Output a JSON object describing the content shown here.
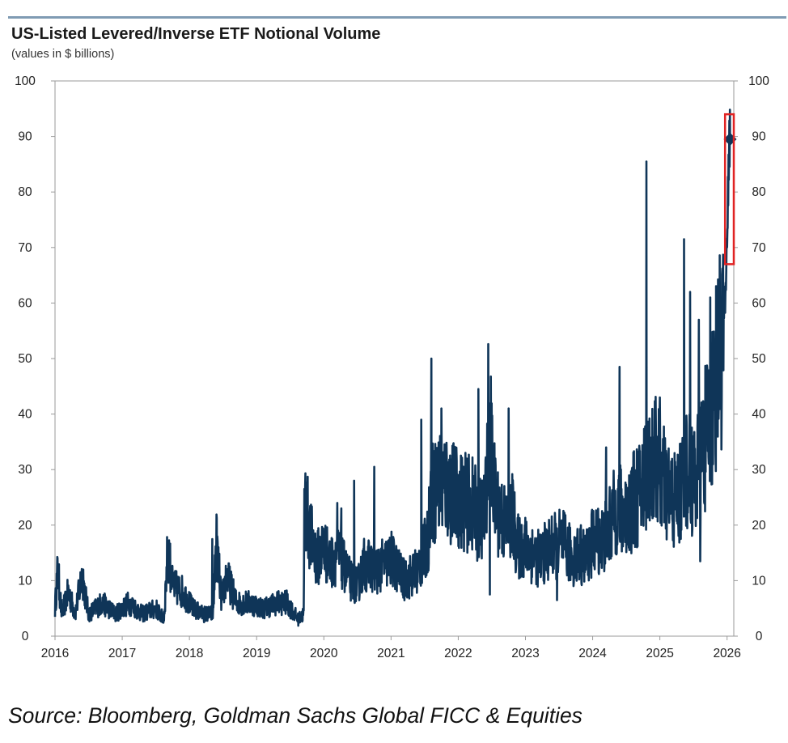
{
  "chart_data": {
    "type": "line",
    "title": "US-Listed Levered/Inverse ETF Notional Volume",
    "subtitle": "(values in $ billions)",
    "source": "Source: Bloomberg, Goldman Sachs Global FICC & Equities",
    "x_ticks": [
      "2016",
      "2017",
      "2018",
      "2019",
      "2020",
      "2021",
      "2022",
      "2023",
      "2024",
      "2025",
      "2026"
    ],
    "y_ticks": [
      "0",
      "10",
      "20",
      "30",
      "40",
      "50",
      "60",
      "70",
      "80",
      "90",
      "100"
    ],
    "xlim": [
      2016,
      2026.1
    ],
    "ylim": [
      0,
      100
    ],
    "grid": false,
    "dual_y_axis": true,
    "series": [
      {
        "color": "#0f3558",
        "anchors": [
          [
            2016.0,
            5
          ],
          [
            2016.04,
            12
          ],
          [
            2016.1,
            4
          ],
          [
            2016.2,
            8
          ],
          [
            2016.3,
            4
          ],
          [
            2016.4,
            11
          ],
          [
            2016.5,
            4
          ],
          [
            2016.7,
            6
          ],
          [
            2016.9,
            4
          ],
          [
            2017.1,
            6
          ],
          [
            2017.3,
            4
          ],
          [
            2017.5,
            5
          ],
          [
            2017.62,
            3
          ],
          [
            2017.68,
            16
          ],
          [
            2017.75,
            9
          ],
          [
            2017.9,
            8
          ],
          [
            2018.05,
            5
          ],
          [
            2018.2,
            4
          ],
          [
            2018.35,
            4
          ],
          [
            2018.4,
            17
          ],
          [
            2018.48,
            6
          ],
          [
            2018.55,
            11
          ],
          [
            2018.7,
            6
          ],
          [
            2018.9,
            6
          ],
          [
            2019.1,
            5
          ],
          [
            2019.3,
            6
          ],
          [
            2019.45,
            6
          ],
          [
            2019.62,
            3
          ],
          [
            2019.7,
            4
          ],
          [
            2019.72,
            24
          ],
          [
            2019.8,
            18
          ],
          [
            2019.9,
            14
          ],
          [
            2020.0,
            16
          ],
          [
            2020.1,
            13
          ],
          [
            2020.2,
            15
          ],
          [
            2020.28,
            13
          ],
          [
            2020.4,
            10
          ],
          [
            2020.5,
            9
          ],
          [
            2020.6,
            13
          ],
          [
            2020.8,
            12
          ],
          [
            2021.0,
            14
          ],
          [
            2021.2,
            10
          ],
          [
            2021.4,
            12
          ],
          [
            2021.55,
            17
          ],
          [
            2021.58,
            25
          ],
          [
            2021.75,
            28
          ],
          [
            2021.9,
            26
          ],
          [
            2022.1,
            24
          ],
          [
            2022.2,
            24
          ],
          [
            2022.3,
            21
          ],
          [
            2022.4,
            22
          ],
          [
            2022.45,
            40
          ],
          [
            2022.55,
            24
          ],
          [
            2022.7,
            20
          ],
          [
            2022.8,
            22
          ],
          [
            2022.88,
            16
          ],
          [
            2023.0,
            16
          ],
          [
            2023.2,
            14
          ],
          [
            2023.4,
            16
          ],
          [
            2023.55,
            17
          ],
          [
            2023.7,
            14
          ],
          [
            2023.8,
            15
          ],
          [
            2023.9,
            14
          ],
          [
            2024.0,
            17
          ],
          [
            2024.2,
            18
          ],
          [
            2024.35,
            23
          ],
          [
            2024.5,
            22
          ],
          [
            2024.7,
            26
          ],
          [
            2024.8,
            30
          ],
          [
            2024.95,
            32
          ],
          [
            2025.1,
            26
          ],
          [
            2025.25,
            24
          ],
          [
            2025.4,
            30
          ],
          [
            2025.5,
            28
          ],
          [
            2025.62,
            32
          ],
          [
            2025.75,
            40
          ],
          [
            2025.85,
            48
          ],
          [
            2025.9,
            52
          ],
          [
            2025.96,
            58
          ],
          [
            2026.0,
            70
          ],
          [
            2026.02,
            83
          ],
          [
            2026.045,
            89.5
          ]
        ],
        "spikes": [
          [
            2016.04,
            12.5
          ],
          [
            2016.42,
            12
          ],
          [
            2017.68,
            16.5
          ],
          [
            2018.34,
            17.5
          ],
          [
            2019.71,
            26.5
          ],
          [
            2020.2,
            24
          ],
          [
            2020.26,
            23
          ],
          [
            2020.45,
            28
          ],
          [
            2020.75,
            30.5
          ],
          [
            2021.45,
            39
          ],
          [
            2021.6,
            50
          ],
          [
            2021.75,
            41
          ],
          [
            2022.3,
            44.5
          ],
          [
            2022.75,
            41
          ],
          [
            2022.45,
            35
          ],
          [
            2022.47,
            7.5
          ],
          [
            2023.47,
            6.5
          ],
          [
            2024.2,
            34
          ],
          [
            2024.4,
            48.5
          ],
          [
            2024.8,
            85.5
          ],
          [
            2025.0,
            43
          ],
          [
            2025.36,
            71.5
          ],
          [
            2025.45,
            62
          ],
          [
            2025.58,
            57
          ],
          [
            2025.6,
            13.5
          ],
          [
            2025.75,
            61
          ],
          [
            2025.85,
            58
          ]
        ],
        "end_marker": [
          2026.045,
          89.5
        ]
      }
    ],
    "annotations": [
      {
        "type": "highlight-box",
        "color": "#e02424",
        "x_range": [
          2025.97,
          2026.1
        ],
        "y_range": [
          67,
          94
        ]
      }
    ]
  }
}
